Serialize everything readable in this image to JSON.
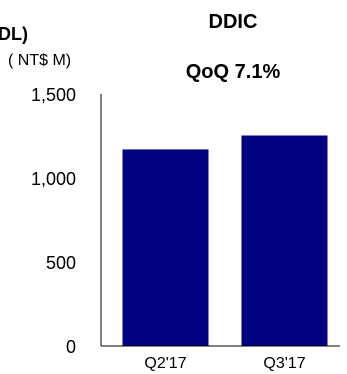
{
  "chart_data": {
    "type": "bar",
    "title": "DDIC",
    "subtitle": "QoQ 7.1%",
    "corner_label": "DL)",
    "unit_label": "( NT$ M)",
    "categories": [
      "Q2'17",
      "Q3'17"
    ],
    "values": [
      1170,
      1253
    ],
    "ylim": [
      0,
      1500
    ],
    "yticks": [
      0,
      500,
      1000,
      1500
    ],
    "ytick_labels": [
      "0",
      "500",
      "1,000",
      "1,500"
    ],
    "grid": false,
    "legend": "none",
    "bar_color": "#000080"
  }
}
